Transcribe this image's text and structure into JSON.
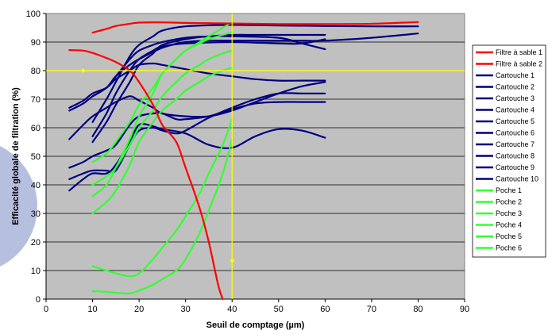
{
  "chart_data": {
    "type": "line",
    "title": "",
    "xlabel": "Seuil de comptage (µm)",
    "ylabel": "Efficacité globale de filtration (%)",
    "xlim": [
      0,
      90
    ],
    "ylim": [
      0,
      100
    ],
    "x_ticks": [
      "0",
      "10",
      "20",
      "30",
      "40",
      "50",
      "60",
      "70",
      "80",
      "90"
    ],
    "y_ticks": [
      "0",
      "10",
      "20",
      "30",
      "40",
      "50",
      "60",
      "70",
      "80",
      "90",
      "100"
    ],
    "grid": "horizontal",
    "background": "#c0c0c0",
    "legend_position": "right",
    "reference_lines": {
      "x": 40,
      "y": 80,
      "color": "#ffff00"
    },
    "colors": {
      "sand": "#ff0000",
      "cartridge": "#000080",
      "bag": "#33ff33"
    },
    "series": [
      {
        "name": "Filtre à sable 1",
        "group": "sand",
        "points": [
          [
            5,
            87.2
          ],
          [
            8,
            87
          ],
          [
            10,
            86.2
          ],
          [
            13,
            84.4
          ],
          [
            15,
            83
          ],
          [
            18,
            80
          ],
          [
            20,
            76
          ],
          [
            23,
            68
          ],
          [
            25,
            61
          ],
          [
            28,
            55
          ],
          [
            30,
            46
          ],
          [
            33,
            32
          ],
          [
            35,
            20
          ],
          [
            37,
            5
          ],
          [
            38,
            0
          ]
        ]
      },
      {
        "name": "Filtre à sable 2",
        "group": "sand",
        "points": [
          [
            10,
            93.3
          ],
          [
            13,
            94.6
          ],
          [
            15,
            95.6
          ],
          [
            18,
            96.4
          ],
          [
            20,
            96.8
          ],
          [
            25,
            96.9
          ],
          [
            30,
            96.7
          ],
          [
            40,
            96.5
          ],
          [
            50,
            96.3
          ],
          [
            60,
            96.3
          ],
          [
            70,
            96.4
          ],
          [
            80,
            97
          ]
        ]
      },
      {
        "name": "Cartouche 1",
        "group": "cartridge",
        "points": [
          [
            5,
            67
          ],
          [
            8,
            69.5
          ],
          [
            10,
            72
          ],
          [
            13,
            74
          ],
          [
            15,
            77
          ],
          [
            18,
            80
          ],
          [
            20,
            82
          ],
          [
            23,
            82.5
          ],
          [
            25,
            82
          ],
          [
            30,
            80.5
          ],
          [
            35,
            79
          ],
          [
            40,
            78
          ],
          [
            45,
            77
          ],
          [
            50,
            76.5
          ],
          [
            55,
            76.5
          ],
          [
            60,
            76.5
          ]
        ]
      },
      {
        "name": "Cartouche 2",
        "group": "cartridge",
        "points": [
          [
            5,
            66
          ],
          [
            8,
            68.5
          ],
          [
            10,
            71
          ],
          [
            13,
            74
          ],
          [
            15,
            78
          ],
          [
            18,
            82
          ],
          [
            20,
            84
          ],
          [
            25,
            88
          ],
          [
            30,
            90
          ],
          [
            35,
            90.5
          ],
          [
            40,
            90.5
          ],
          [
            45,
            90.5
          ],
          [
            50,
            90.5
          ],
          [
            55,
            90.5
          ],
          [
            60,
            90.5
          ],
          [
            70,
            91.5
          ],
          [
            80,
            93
          ]
        ]
      },
      {
        "name": "Cartouche 3",
        "group": "cartridge",
        "points": [
          [
            10,
            55
          ],
          [
            13,
            62
          ],
          [
            15,
            68
          ],
          [
            18,
            76
          ],
          [
            20,
            82
          ],
          [
            23,
            86
          ],
          [
            25,
            89
          ],
          [
            30,
            91
          ],
          [
            35,
            92
          ],
          [
            40,
            92
          ],
          [
            50,
            91.5
          ],
          [
            55,
            89.5
          ],
          [
            60,
            87.5
          ]
        ]
      },
      {
        "name": "Cartouche 4",
        "group": "cartridge",
        "points": [
          [
            10,
            57
          ],
          [
            13,
            65
          ],
          [
            15,
            72
          ],
          [
            18,
            80
          ],
          [
            20,
            84
          ],
          [
            23,
            87
          ],
          [
            25,
            88.5
          ],
          [
            30,
            89.5
          ],
          [
            40,
            90
          ],
          [
            50,
            89.5
          ],
          [
            55,
            89.5
          ],
          [
            60,
            91
          ]
        ]
      },
      {
        "name": "Cartouche 5",
        "group": "cartridge",
        "points": [
          [
            10,
            62
          ],
          [
            13,
            70
          ],
          [
            15,
            76
          ],
          [
            18,
            85
          ],
          [
            20,
            89
          ],
          [
            23,
            92
          ],
          [
            25,
            94
          ],
          [
            30,
            95.5
          ],
          [
            40,
            96
          ],
          [
            50,
            95.8
          ],
          [
            60,
            95.6
          ],
          [
            70,
            95.5
          ],
          [
            80,
            95.5
          ]
        ]
      },
      {
        "name": "Cartouche 6",
        "group": "cartridge",
        "points": [
          [
            5,
            56
          ],
          [
            8,
            61
          ],
          [
            10,
            64
          ],
          [
            13,
            67
          ],
          [
            15,
            69
          ],
          [
            18,
            71
          ],
          [
            20,
            69.5
          ],
          [
            23,
            67
          ],
          [
            25,
            65
          ],
          [
            30,
            64
          ],
          [
            35,
            64
          ],
          [
            40,
            66
          ],
          [
            45,
            69
          ],
          [
            50,
            72
          ],
          [
            55,
            74.5
          ],
          [
            60,
            76
          ]
        ]
      },
      {
        "name": "Cartouche 7",
        "group": "cartridge",
        "points": [
          [
            5,
            46
          ],
          [
            8,
            48
          ],
          [
            10,
            50
          ],
          [
            13,
            52
          ],
          [
            15,
            54
          ],
          [
            18,
            61
          ],
          [
            20,
            64
          ],
          [
            23,
            65
          ],
          [
            25,
            65
          ],
          [
            28,
            63
          ],
          [
            30,
            63
          ],
          [
            35,
            64
          ],
          [
            40,
            66.5
          ],
          [
            45,
            68.5
          ],
          [
            50,
            69
          ],
          [
            55,
            69
          ],
          [
            60,
            69
          ]
        ]
      },
      {
        "name": "Cartouche 8",
        "group": "cartridge",
        "points": [
          [
            5,
            42
          ],
          [
            8,
            44
          ],
          [
            10,
            45
          ],
          [
            13,
            45
          ],
          [
            15,
            45
          ],
          [
            18,
            54
          ],
          [
            20,
            59
          ],
          [
            23,
            60
          ],
          [
            25,
            59
          ],
          [
            28,
            58
          ],
          [
            30,
            59
          ],
          [
            35,
            63.5
          ],
          [
            40,
            67
          ],
          [
            45,
            70
          ],
          [
            50,
            72
          ],
          [
            55,
            72
          ],
          [
            60,
            72
          ]
        ]
      },
      {
        "name": "Cartouche 9",
        "group": "cartridge",
        "points": [
          [
            5,
            38
          ],
          [
            8,
            42
          ],
          [
            10,
            44
          ],
          [
            13,
            44
          ],
          [
            15,
            47
          ],
          [
            18,
            55
          ],
          [
            20,
            61
          ],
          [
            23,
            60.5
          ],
          [
            25,
            59.5
          ],
          [
            30,
            58
          ],
          [
            35,
            54
          ],
          [
            40,
            53
          ],
          [
            45,
            57
          ],
          [
            50,
            59.5
          ],
          [
            55,
            59
          ],
          [
            60,
            56.5
          ]
        ]
      },
      {
        "name": "Cartouche 10",
        "group": "cartridge",
        "points": [
          [
            10,
            71
          ],
          [
            13,
            74
          ],
          [
            15,
            78
          ],
          [
            18,
            84
          ],
          [
            20,
            87
          ],
          [
            23,
            89
          ],
          [
            25,
            90
          ],
          [
            30,
            91.5
          ],
          [
            35,
            92
          ],
          [
            40,
            92.5
          ],
          [
            45,
            92.5
          ],
          [
            50,
            92.5
          ],
          [
            55,
            92.5
          ],
          [
            60,
            92.5
          ]
        ]
      },
      {
        "name": "Poche 1",
        "group": "bag",
        "points": [
          [
            10,
            48
          ],
          [
            13,
            51
          ],
          [
            15,
            55
          ],
          [
            18,
            62
          ],
          [
            20,
            68
          ],
          [
            23,
            74
          ],
          [
            25,
            79
          ],
          [
            28,
            84
          ],
          [
            30,
            87
          ],
          [
            33,
            90
          ],
          [
            35,
            92
          ],
          [
            38,
            95
          ],
          [
            40,
            97
          ]
        ]
      },
      {
        "name": "Poche 2",
        "group": "bag",
        "points": [
          [
            10,
            40
          ],
          [
            13,
            43
          ],
          [
            15,
            46
          ],
          [
            18,
            54
          ],
          [
            20,
            60
          ],
          [
            23,
            66
          ],
          [
            25,
            71
          ],
          [
            28,
            76
          ],
          [
            30,
            79
          ],
          [
            33,
            82
          ],
          [
            35,
            84
          ],
          [
            38,
            86
          ],
          [
            40,
            87
          ]
        ]
      },
      {
        "name": "Poche 3",
        "group": "bag",
        "points": [
          [
            10,
            36
          ],
          [
            13,
            40
          ],
          [
            15,
            46
          ],
          [
            18,
            56
          ],
          [
            20,
            64
          ],
          [
            23,
            72
          ],
          [
            25,
            79
          ],
          [
            28,
            84
          ],
          [
            30,
            87
          ],
          [
            33,
            89.5
          ],
          [
            35,
            91
          ],
          [
            38,
            92.5
          ],
          [
            40,
            93.5
          ]
        ]
      },
      {
        "name": "Poche 4",
        "group": "bag",
        "points": [
          [
            10,
            30
          ],
          [
            13,
            34
          ],
          [
            15,
            38
          ],
          [
            18,
            47
          ],
          [
            20,
            55
          ],
          [
            23,
            62
          ],
          [
            25,
            66
          ],
          [
            28,
            70
          ],
          [
            30,
            73
          ],
          [
            33,
            76
          ],
          [
            35,
            78
          ],
          [
            38,
            80
          ],
          [
            40,
            81
          ]
        ]
      },
      {
        "name": "Poche 5",
        "group": "bag",
        "points": [
          [
            10,
            11.5
          ],
          [
            13,
            10
          ],
          [
            15,
            9
          ],
          [
            18,
            8
          ],
          [
            20,
            9
          ],
          [
            23,
            14
          ],
          [
            25,
            18
          ],
          [
            28,
            24
          ],
          [
            30,
            29
          ],
          [
            33,
            37
          ],
          [
            35,
            44
          ],
          [
            38,
            54
          ],
          [
            40,
            63
          ]
        ]
      },
      {
        "name": "Poche 6",
        "group": "bag",
        "points": [
          [
            10,
            2.8
          ],
          [
            13,
            2.5
          ],
          [
            15,
            2.2
          ],
          [
            18,
            2
          ],
          [
            20,
            3
          ],
          [
            23,
            5
          ],
          [
            25,
            7
          ],
          [
            28,
            10
          ],
          [
            30,
            14
          ],
          [
            33,
            23
          ],
          [
            35,
            31
          ],
          [
            38,
            44
          ],
          [
            40,
            56
          ]
        ]
      }
    ]
  }
}
